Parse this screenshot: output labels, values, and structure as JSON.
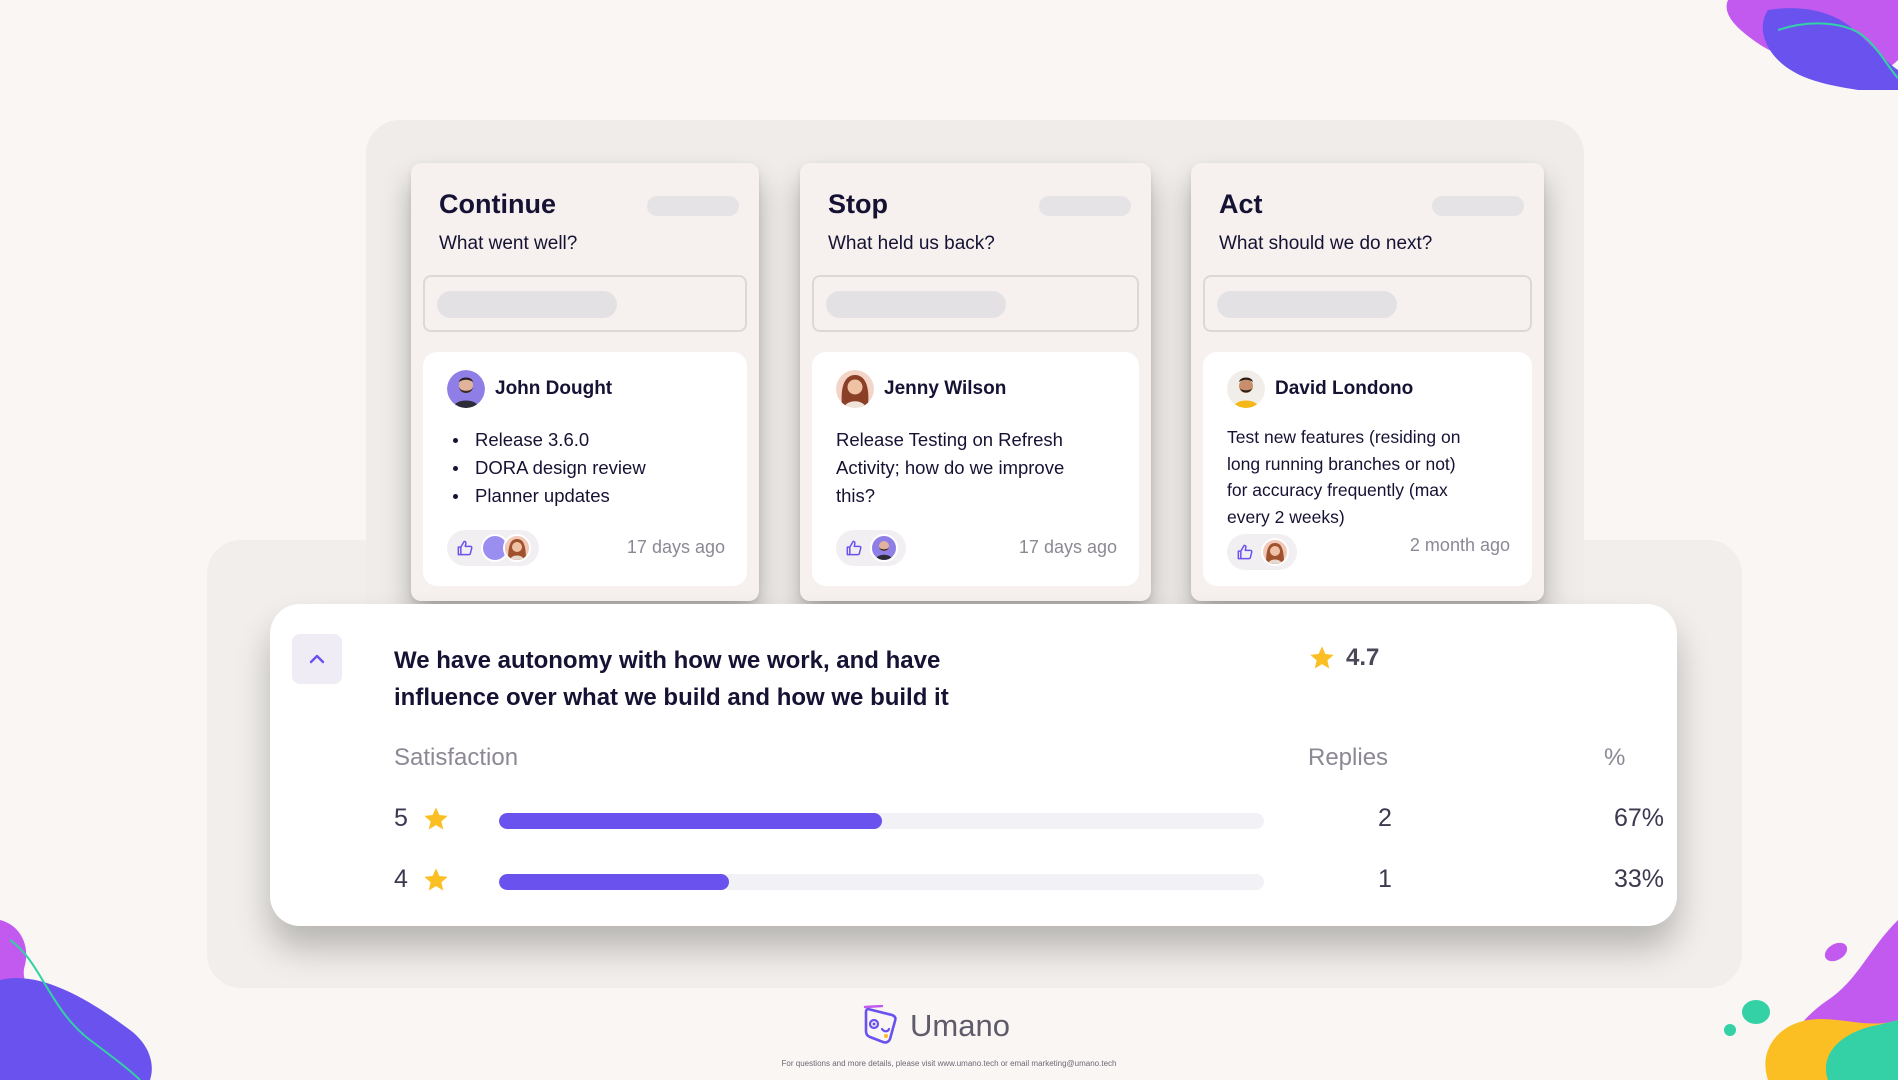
{
  "colors": {
    "background": "#f9f6f3",
    "accent": "#6a52ef",
    "star": "#fbbf24",
    "text_dark": "#151233",
    "text_muted": "#8c8894"
  },
  "retro": {
    "columns": [
      {
        "title": "Continue",
        "subtitle": "What went well?",
        "note": {
          "author": "John Dought",
          "avatar_icon": "man-beard-avatar",
          "items": [
            "Release 3.6.0",
            "DORA design review",
            "Planner updates"
          ],
          "time": "17 days ago",
          "reactions": [
            "thumbs-up-icon",
            "purple-avatar",
            "woman-avatar"
          ]
        }
      },
      {
        "title": "Stop",
        "subtitle": "What held us back?",
        "note": {
          "author": "Jenny Wilson",
          "avatar_icon": "woman-avatar",
          "text": "Release Testing on Refresh Activity; how do we improve this?",
          "time": "17 days ago",
          "reactions": [
            "thumbs-up-icon",
            "man-beard-avatar"
          ]
        }
      },
      {
        "title": "Act",
        "subtitle": "What should we do next?",
        "note": {
          "author": "David Londono",
          "avatar_icon": "man-yellow-shirt-avatar",
          "text": "Test new features (residing on long running branches or not) for accuracy frequently (max every 2 weeks)",
          "time": "2 month ago",
          "reactions": [
            "thumbs-up-icon",
            "woman-avatar"
          ]
        }
      }
    ]
  },
  "survey": {
    "question": "We have autonomy with how we work, and have influence over what we build and how we build it",
    "rating": "4.7",
    "headers": {
      "satisfaction": "Satisfaction",
      "replies": "Replies",
      "percent": "%"
    },
    "rows": [
      {
        "score": "5",
        "replies": "2",
        "percent": "67%",
        "fill": 0.5
      },
      {
        "score": "4",
        "replies": "1",
        "percent": "33%",
        "fill": 0.3
      }
    ]
  },
  "footer": {
    "brand": "Umano",
    "note": "For questions and more details, please visit www.umano.tech or email marketing@umano.tech"
  }
}
